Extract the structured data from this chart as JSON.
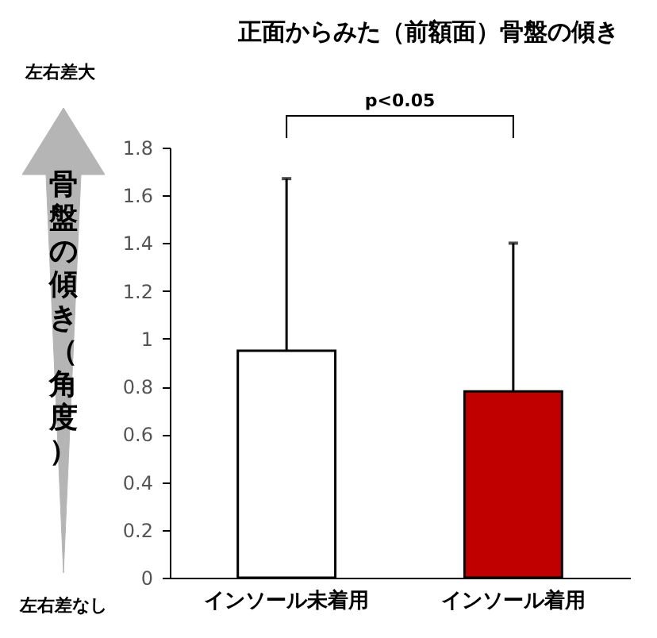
{
  "chart_data": {
    "type": "bar",
    "title": "正面からみた（前額面）骨盤の傾き",
    "ylabel": "骨盤の傾き（角度）",
    "categories": [
      "インソール未着用",
      "インソール着用"
    ],
    "values": [
      0.95,
      0.78
    ],
    "colors": [
      "#ffffff",
      "#c00000"
    ],
    "errors": [
      [
        0.95,
        1.67
      ],
      [
        0.78,
        1.4
      ]
    ],
    "ylim": [
      0,
      1.8
    ],
    "yticks": [
      0,
      0.2,
      0.4,
      0.6,
      0.8,
      1,
      1.2,
      1.4,
      1.6,
      1.8
    ],
    "grid": false,
    "legend": false,
    "annotations": [
      "左右差大",
      "左右差なし",
      "p<0.05"
    ]
  }
}
